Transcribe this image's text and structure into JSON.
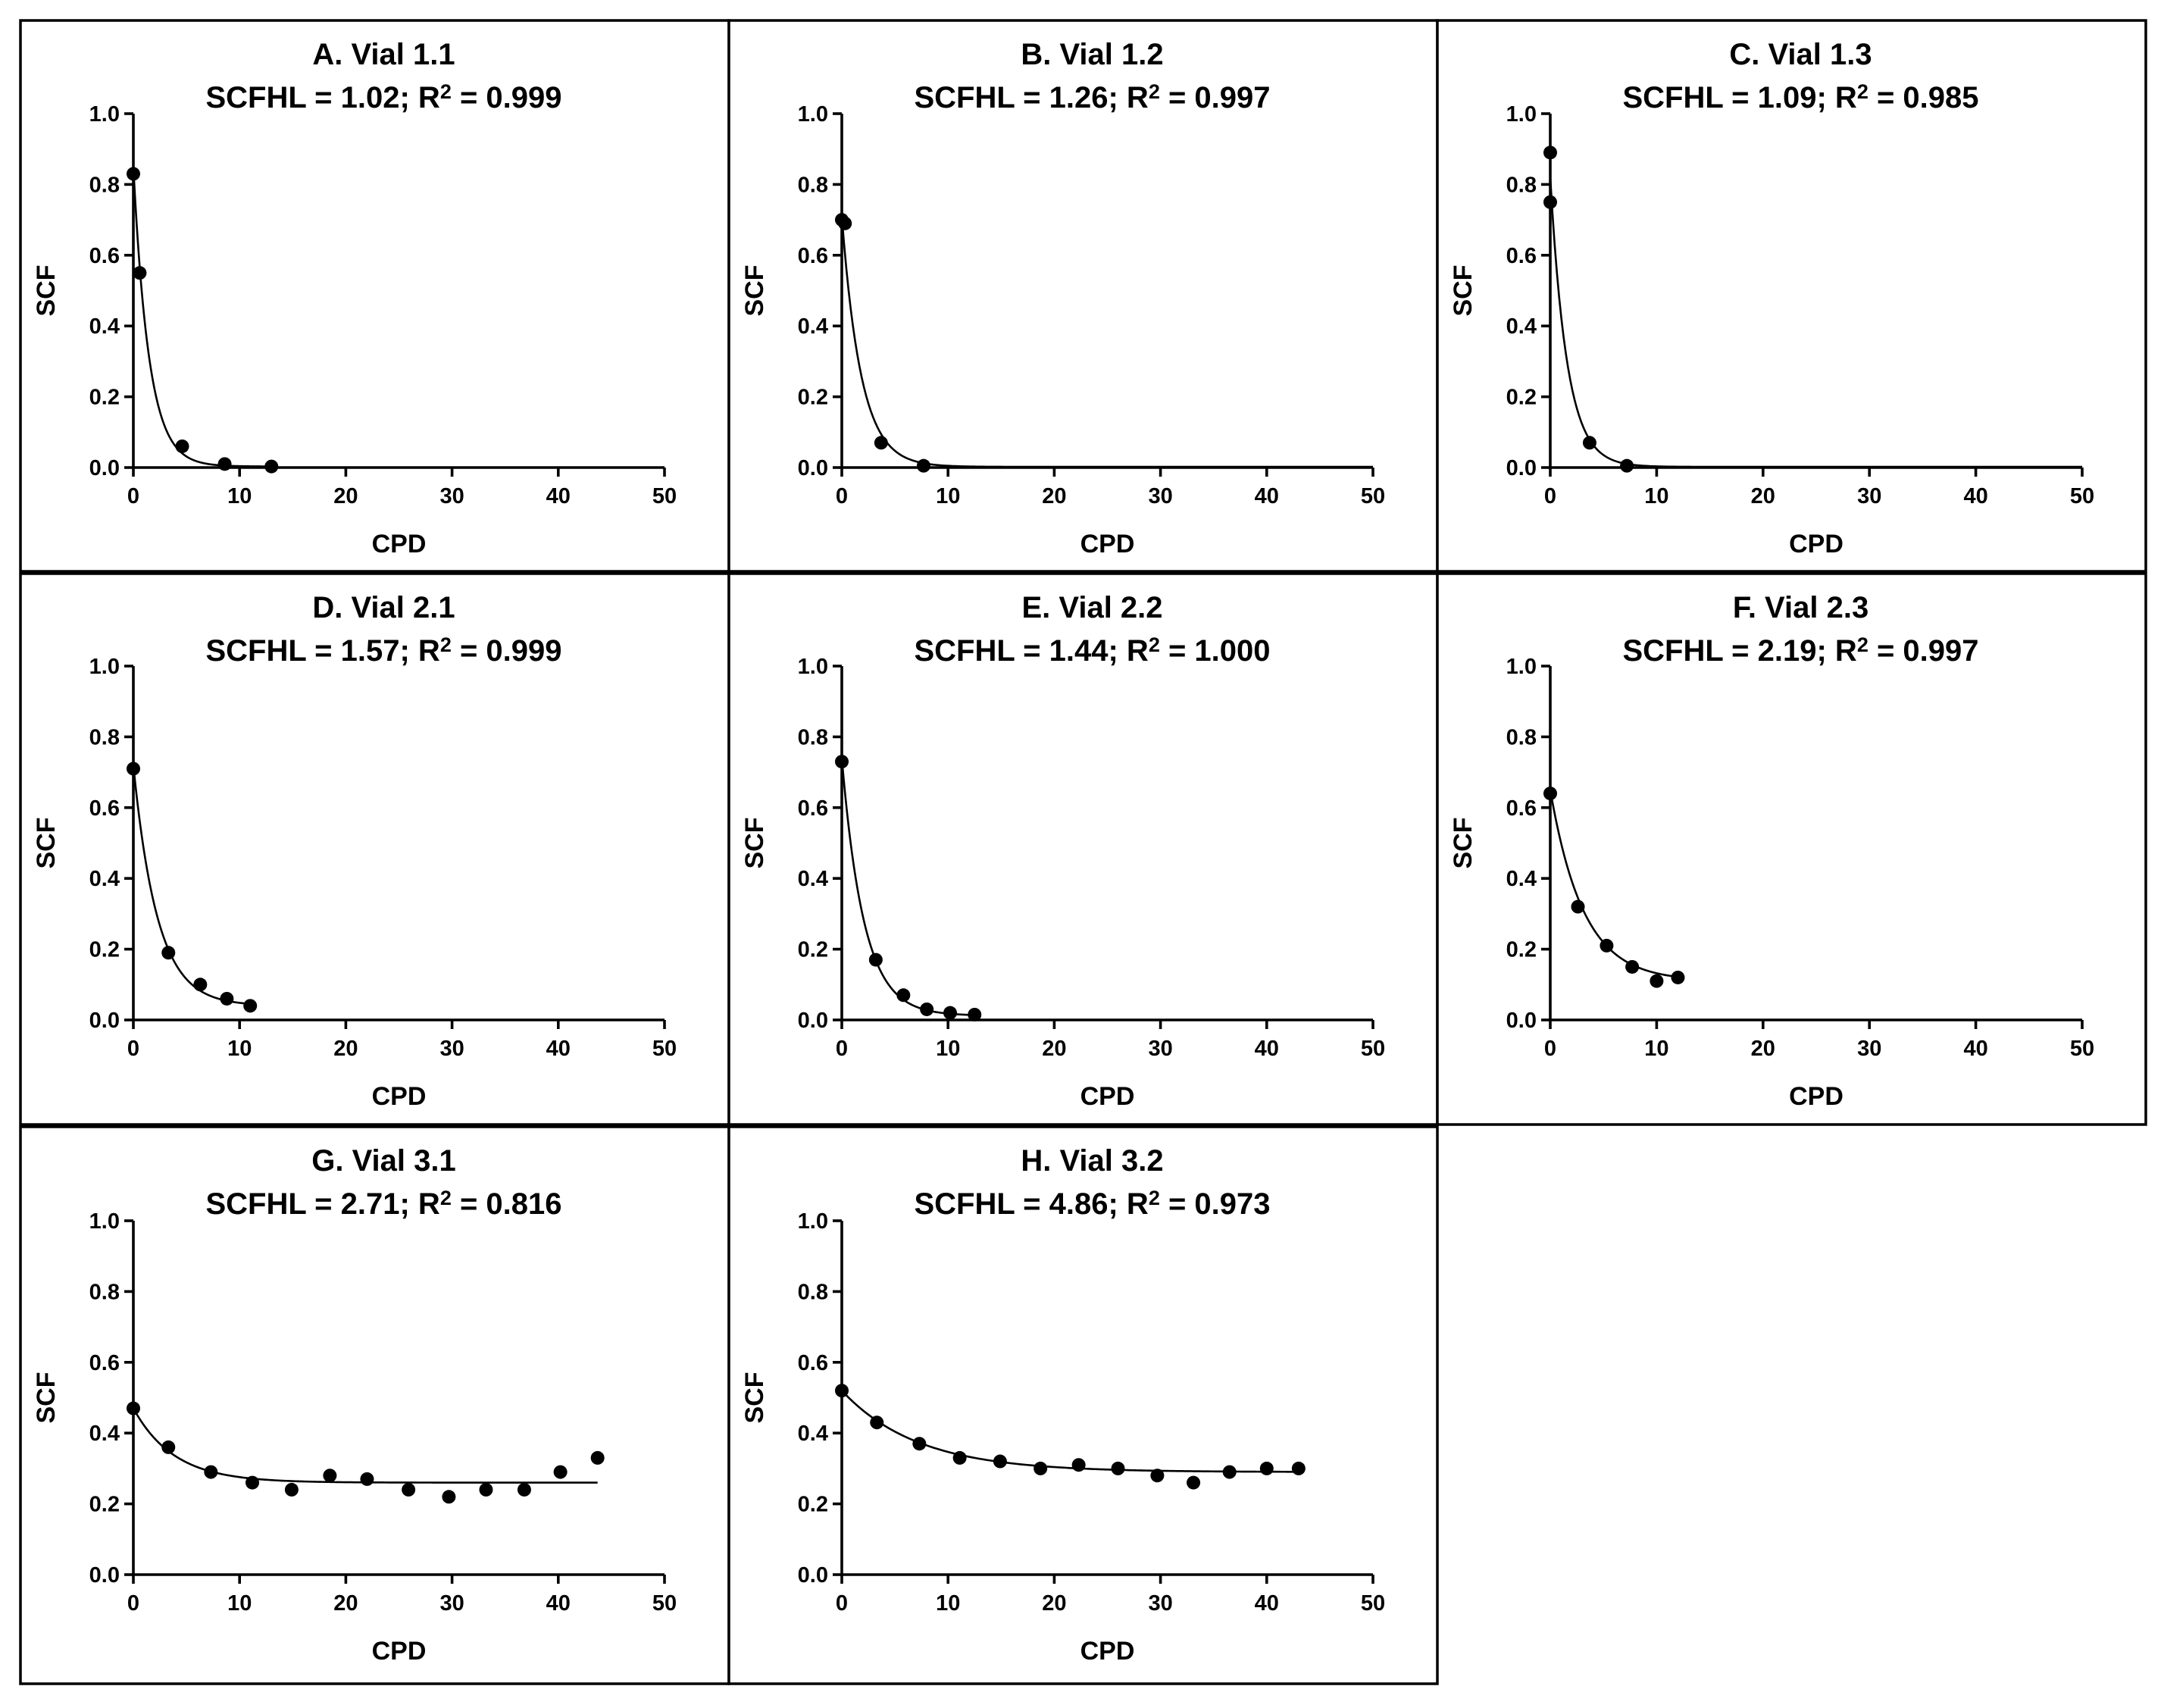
{
  "chart_data": [
    {
      "type": "scatter",
      "title": "A. Vial 1.1",
      "stats": {
        "prefix": "SCFHL = ",
        "scfhl": "1.02",
        "r2_label": "; R",
        "r2_sup": "2",
        "r2_eq": " = ",
        "r2": "0.999"
      },
      "xlabel": "CPD",
      "ylabel": "SCF",
      "xlim": [
        0,
        50
      ],
      "ylim": [
        0,
        1.0
      ],
      "xticks": [
        "0",
        "10",
        "20",
        "30",
        "40",
        "50"
      ],
      "yticks": [
        "0.0",
        "0.2",
        "0.4",
        "0.6",
        "0.8",
        "1.0"
      ],
      "points": [
        [
          0,
          0.83
        ],
        [
          0.6,
          0.55
        ],
        [
          4.6,
          0.06
        ],
        [
          8.6,
          0.01
        ],
        [
          13,
          0.003
        ]
      ],
      "fit": {
        "y0": 0.85,
        "plateau": 0.003,
        "k": 0.68,
        "xmax": 13
      }
    },
    {
      "type": "scatter",
      "title": "B. Vial 1.2",
      "stats": {
        "prefix": "SCFHL = ",
        "scfhl": "1.26",
        "r2_label": "; R",
        "r2_sup": "2",
        "r2_eq": " = ",
        "r2": "0.997"
      },
      "xlabel": "CPD",
      "ylabel": "SCF",
      "xlim": [
        0,
        50
      ],
      "ylim": [
        0,
        1.0
      ],
      "xticks": [
        "0",
        "10",
        "20",
        "30",
        "40",
        "50"
      ],
      "yticks": [
        "0.0",
        "0.2",
        "0.4",
        "0.6",
        "0.8",
        "1.0"
      ],
      "points": [
        [
          0,
          0.7
        ],
        [
          0.3,
          0.69
        ],
        [
          3.7,
          0.07
        ],
        [
          7.7,
          0.005
        ]
      ],
      "fit": {
        "y0": 0.71,
        "plateau": 0.002,
        "k": 0.55,
        "xmax": 50
      }
    },
    {
      "type": "scatter",
      "title": "C. Vial 1.3",
      "stats": {
        "prefix": "SCFHL = ",
        "scfhl": "1.09",
        "r2_label": "; R",
        "r2_sup": "2",
        "r2_eq": " = ",
        "r2": "0.985"
      },
      "xlabel": "CPD",
      "ylabel": "SCF",
      "xlim": [
        0,
        50
      ],
      "ylim": [
        0,
        1.0
      ],
      "xticks": [
        "0",
        "10",
        "20",
        "30",
        "40",
        "50"
      ],
      "yticks": [
        "0.0",
        "0.2",
        "0.4",
        "0.6",
        "0.8",
        "1.0"
      ],
      "points": [
        [
          0,
          0.89
        ],
        [
          0,
          0.75
        ],
        [
          3.7,
          0.07
        ],
        [
          7.2,
          0.005
        ]
      ],
      "fit": {
        "y0": 0.82,
        "plateau": 0.002,
        "k": 0.64,
        "xmax": 50
      }
    },
    {
      "type": "scatter",
      "title": "D. Vial 2.1",
      "stats": {
        "prefix": "SCFHL = ",
        "scfhl": "1.57",
        "r2_label": "; R",
        "r2_sup": "2",
        "r2_eq": " = ",
        "r2": "0.999"
      },
      "xlabel": "CPD",
      "ylabel": "SCF",
      "xlim": [
        0,
        50
      ],
      "ylim": [
        0,
        1.0
      ],
      "xticks": [
        "0",
        "10",
        "20",
        "30",
        "40",
        "50"
      ],
      "yticks": [
        "0.0",
        "0.2",
        "0.4",
        "0.6",
        "0.8",
        "1.0"
      ],
      "points": [
        [
          0,
          0.71
        ],
        [
          3.3,
          0.19
        ],
        [
          6.3,
          0.1
        ],
        [
          8.8,
          0.06
        ],
        [
          11,
          0.04
        ]
      ],
      "fit": {
        "y0": 0.72,
        "plateau": 0.04,
        "k": 0.44,
        "xmax": 11
      }
    },
    {
      "type": "scatter",
      "title": "E. Vial 2.2",
      "stats": {
        "prefix": "SCFHL = ",
        "scfhl": "1.44",
        "r2_label": "; R",
        "r2_sup": "2",
        "r2_eq": " = ",
        "r2": "1.000"
      },
      "xlabel": "CPD",
      "ylabel": "SCF",
      "xlim": [
        0,
        50
      ],
      "ylim": [
        0,
        1.0
      ],
      "xticks": [
        "0",
        "10",
        "20",
        "30",
        "40",
        "50"
      ],
      "yticks": [
        "0.0",
        "0.2",
        "0.4",
        "0.6",
        "0.8",
        "1.0"
      ],
      "points": [
        [
          0,
          0.73
        ],
        [
          3.2,
          0.17
        ],
        [
          5.8,
          0.07
        ],
        [
          8.0,
          0.03
        ],
        [
          10.2,
          0.02
        ],
        [
          12.5,
          0.015
        ]
      ],
      "fit": {
        "y0": 0.74,
        "plateau": 0.012,
        "k": 0.48,
        "xmax": 12.5
      }
    },
    {
      "type": "scatter",
      "title": "F. Vial 2.3",
      "stats": {
        "prefix": "SCFHL = ",
        "scfhl": "2.19",
        "r2_label": "; R",
        "r2_sup": "2",
        "r2_eq": " = ",
        "r2": "0.997"
      },
      "xlabel": "CPD",
      "ylabel": "SCF",
      "xlim": [
        0,
        50
      ],
      "ylim": [
        0,
        1.0
      ],
      "xticks": [
        "0",
        "10",
        "20",
        "30",
        "40",
        "50"
      ],
      "yticks": [
        "0.0",
        "0.2",
        "0.4",
        "0.6",
        "0.8",
        "1.0"
      ],
      "points": [
        [
          0,
          0.64
        ],
        [
          2.6,
          0.32
        ],
        [
          5.3,
          0.21
        ],
        [
          7.7,
          0.15
        ],
        [
          10,
          0.11
        ],
        [
          12,
          0.12
        ]
      ],
      "fit": {
        "y0": 0.65,
        "plateau": 0.11,
        "k": 0.32,
        "xmax": 12
      }
    },
    {
      "type": "scatter",
      "title": "G. Vial 3.1",
      "stats": {
        "prefix": "SCFHL = ",
        "scfhl": "2.71",
        "r2_label": "; R",
        "r2_sup": "2",
        "r2_eq": " = ",
        "r2": "0.816"
      },
      "xlabel": "CPD",
      "ylabel": "SCF",
      "xlim": [
        0,
        50
      ],
      "ylim": [
        0,
        1.0
      ],
      "xticks": [
        "0",
        "10",
        "20",
        "30",
        "40",
        "50"
      ],
      "yticks": [
        "0.0",
        "0.2",
        "0.4",
        "0.6",
        "0.8",
        "1.0"
      ],
      "points": [
        [
          0,
          0.47
        ],
        [
          3.3,
          0.36
        ],
        [
          7.3,
          0.29
        ],
        [
          11.2,
          0.26
        ],
        [
          14.9,
          0.24
        ],
        [
          18.5,
          0.28
        ],
        [
          22,
          0.27
        ],
        [
          25.9,
          0.24
        ],
        [
          29.7,
          0.22
        ],
        [
          33.2,
          0.24
        ],
        [
          36.8,
          0.24
        ],
        [
          40.2,
          0.29
        ],
        [
          43.7,
          0.33
        ]
      ],
      "fit": {
        "y0": 0.47,
        "plateau": 0.26,
        "k": 0.26,
        "xmax": 43.7
      }
    },
    {
      "type": "scatter",
      "title": "H. Vial 3.2",
      "stats": {
        "prefix": "SCFHL = ",
        "scfhl": "4.86",
        "r2_label": "; R",
        "r2_sup": "2",
        "r2_eq": " = ",
        "r2": "0.973"
      },
      "xlabel": "CPD",
      "ylabel": "SCF",
      "xlim": [
        0,
        50
      ],
      "ylim": [
        0,
        1.0
      ],
      "xticks": [
        "0",
        "10",
        "20",
        "30",
        "40",
        "50"
      ],
      "yticks": [
        "0.0",
        "0.2",
        "0.4",
        "0.6",
        "0.8",
        "1.0"
      ],
      "points": [
        [
          0,
          0.52
        ],
        [
          3.3,
          0.43
        ],
        [
          7.3,
          0.37
        ],
        [
          11.1,
          0.33
        ],
        [
          14.9,
          0.32
        ],
        [
          18.7,
          0.3
        ],
        [
          22.3,
          0.31
        ],
        [
          26,
          0.3
        ],
        [
          29.7,
          0.28
        ],
        [
          33.1,
          0.26
        ],
        [
          36.5,
          0.29
        ],
        [
          40,
          0.3
        ],
        [
          43,
          0.3
        ]
      ],
      "fit": {
        "y0": 0.52,
        "plateau": 0.29,
        "k": 0.14,
        "xmax": 43
      }
    }
  ]
}
